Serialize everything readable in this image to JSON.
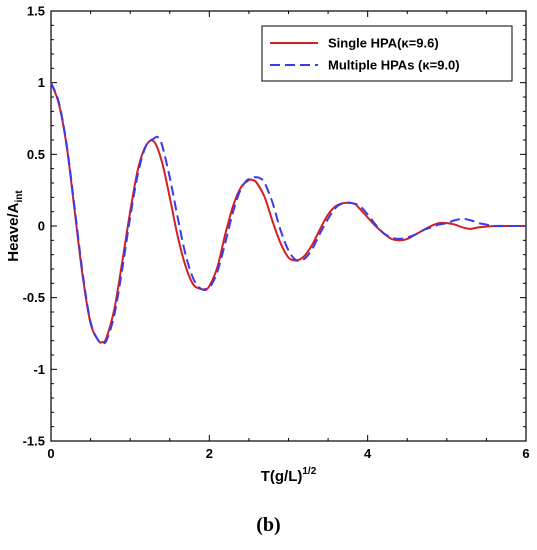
{
  "chart_data": {
    "type": "line",
    "xlabel": "T(g/L)",
    "xlabel_sup": "1/2",
    "ylabel": "Heave/A",
    "ylabel_sub": "int",
    "xlim": [
      0,
      6
    ],
    "ylim": [
      -1.5,
      1.5
    ],
    "x_ticks": [
      0,
      2,
      4,
      6
    ],
    "x_tick_labels": [
      "0",
      "2",
      "4",
      "6"
    ],
    "y_ticks": [
      -1.5,
      -1,
      -0.5,
      0,
      0.5,
      1,
      1.5
    ],
    "y_tick_labels": [
      "-1.5",
      "-1",
      "-0.5",
      "0",
      "0.5",
      "1",
      "1.5"
    ],
    "legend_position": "top-right",
    "series": [
      {
        "name": "Single HPA(κ=9.6)",
        "color": "#d42020",
        "style": "solid",
        "x": [
          0,
          0.1,
          0.2,
          0.3,
          0.4,
          0.5,
          0.6,
          0.65,
          0.7,
          0.8,
          0.9,
          1.0,
          1.1,
          1.2,
          1.3,
          1.4,
          1.5,
          1.6,
          1.7,
          1.8,
          1.9,
          1.95,
          2.0,
          2.1,
          2.2,
          2.3,
          2.4,
          2.5,
          2.55,
          2.6,
          2.7,
          2.8,
          2.9,
          3.0,
          3.1,
          3.2,
          3.3,
          3.4,
          3.5,
          3.6,
          3.7,
          3.8,
          3.85,
          3.9,
          4.0,
          4.1,
          4.2,
          4.3,
          4.4,
          4.5,
          4.6,
          4.7,
          4.8,
          4.9,
          5.0,
          5.1,
          5.2,
          5.3,
          5.4,
          5.6,
          5.8,
          6.0
        ],
        "y": [
          1.0,
          0.85,
          0.55,
          0.1,
          -0.35,
          -0.68,
          -0.8,
          -0.81,
          -0.78,
          -0.58,
          -0.25,
          0.1,
          0.4,
          0.56,
          0.59,
          0.45,
          0.2,
          -0.07,
          -0.28,
          -0.41,
          -0.44,
          -0.44,
          -0.42,
          -0.29,
          -0.06,
          0.14,
          0.27,
          0.32,
          0.32,
          0.3,
          0.2,
          0.03,
          -0.12,
          -0.22,
          -0.24,
          -0.21,
          -0.13,
          -0.02,
          0.08,
          0.14,
          0.16,
          0.16,
          0.15,
          0.12,
          0.06,
          0.0,
          -0.05,
          -0.09,
          -0.1,
          -0.09,
          -0.06,
          -0.03,
          0.0,
          0.02,
          0.02,
          0.01,
          -0.01,
          -0.02,
          -0.01,
          0.0,
          0.0,
          0.0
        ]
      },
      {
        "name": "Multiple HPAs (κ=9.0)",
        "color": "#3a3aee",
        "style": "dashed",
        "x": [
          0,
          0.1,
          0.2,
          0.3,
          0.4,
          0.5,
          0.6,
          0.65,
          0.7,
          0.8,
          0.9,
          1.0,
          1.1,
          1.2,
          1.3,
          1.35,
          1.4,
          1.5,
          1.6,
          1.7,
          1.8,
          1.9,
          2.0,
          2.1,
          2.2,
          2.3,
          2.4,
          2.5,
          2.6,
          2.65,
          2.7,
          2.8,
          2.9,
          3.0,
          3.1,
          3.2,
          3.3,
          3.4,
          3.5,
          3.6,
          3.7,
          3.8,
          3.9,
          4.0,
          4.1,
          4.2,
          4.3,
          4.4,
          4.5,
          4.6,
          4.7,
          4.8,
          4.9,
          5.0,
          5.1,
          5.2,
          5.3,
          5.4,
          5.5,
          5.6,
          5.8,
          6.0
        ],
        "y": [
          1.0,
          0.86,
          0.56,
          0.12,
          -0.33,
          -0.67,
          -0.8,
          -0.81,
          -0.8,
          -0.62,
          -0.3,
          0.06,
          0.37,
          0.56,
          0.61,
          0.62,
          0.57,
          0.34,
          0.06,
          -0.2,
          -0.37,
          -0.44,
          -0.43,
          -0.32,
          -0.12,
          0.1,
          0.26,
          0.33,
          0.34,
          0.33,
          0.3,
          0.16,
          -0.03,
          -0.17,
          -0.24,
          -0.23,
          -0.16,
          -0.05,
          0.05,
          0.13,
          0.16,
          0.16,
          0.14,
          0.08,
          0.01,
          -0.05,
          -0.08,
          -0.09,
          -0.08,
          -0.06,
          -0.03,
          -0.01,
          0.01,
          0.02,
          0.04,
          0.05,
          0.04,
          0.02,
          0.01,
          0.0,
          0.0,
          0.0
        ]
      }
    ]
  },
  "panel_label": "(b)"
}
